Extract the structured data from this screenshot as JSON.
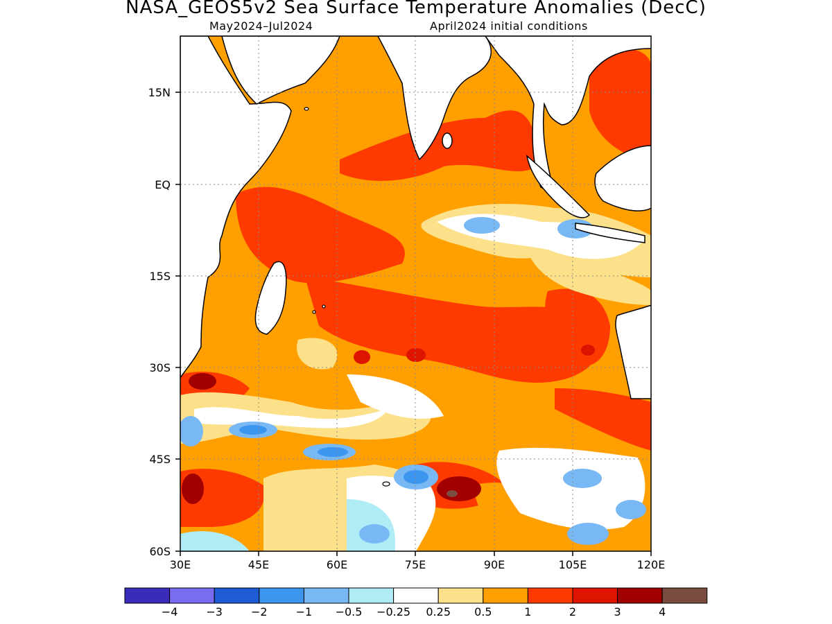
{
  "title": "NASA_GEOS5v2 Sea Surface Temperature Anomalies (DecC)",
  "subtitle_left": "May2024–Jul2024",
  "subtitle_right": "April2024 initial conditions",
  "map": {
    "lon_range": [
      30,
      120
    ],
    "lat_range": [
      -60,
      24
    ],
    "lon_ticks": [
      "30E",
      "45E",
      "60E",
      "75E",
      "90E",
      "105E",
      "120E"
    ],
    "lat_ticks": [
      "15N",
      "EQ",
      "15S",
      "30S",
      "45S",
      "60S"
    ],
    "grid": "dotted"
  },
  "colorbar": {
    "colors": [
      "#3a2bb8",
      "#7a6cf0",
      "#1e5cd6",
      "#3c96f0",
      "#78b8f5",
      "#b0ecf6",
      "#ffffff",
      "#fde08a",
      "#ff9f00",
      "#ff3a00",
      "#de1400",
      "#a20000",
      "#7a4c40"
    ],
    "labels": [
      "-4",
      "-3",
      "-2",
      "-1",
      "-0.5",
      "-0.25",
      "0.25",
      "0.5",
      "1",
      "2",
      "3",
      "4"
    ]
  }
}
